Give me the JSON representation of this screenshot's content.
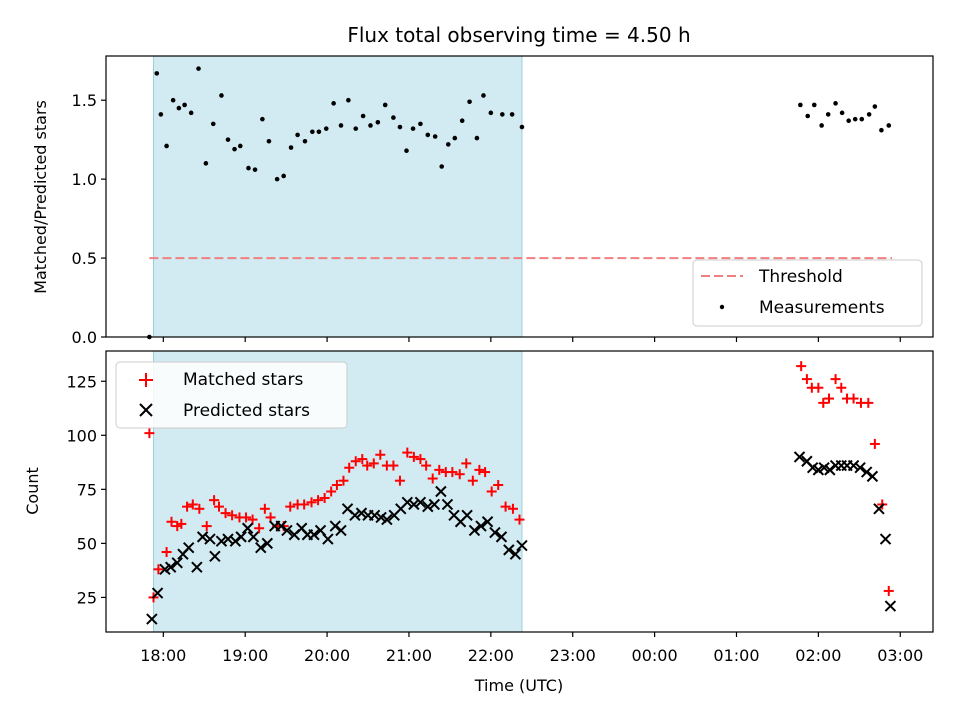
{
  "chart_data": [
    {
      "type": "scatter",
      "title": "Flux total observing time = 4.50 h",
      "ylabel": "Matched/Predicted stars",
      "xlabel": "",
      "ylim": [
        0,
        1.78
      ],
      "yticks": [
        0.0,
        0.5,
        1.0,
        1.5
      ],
      "ytick_labels": [
        "0.0",
        "0.5",
        "1.0",
        "1.5"
      ],
      "shaded_interval": {
        "x_start": 17.88,
        "x_end": 22.38,
        "color": "#add8e6"
      },
      "threshold": {
        "name": "Threshold",
        "value": 0.5,
        "x_start": 17.83,
        "x_end": 26.9,
        "color": "#f08080"
      },
      "legend": {
        "position": "lower-right",
        "entries": [
          "Threshold",
          "Measurements"
        ]
      },
      "series": [
        {
          "name": "Measurements",
          "color": "#000000",
          "x": [
            17.83,
            17.92,
            17.97,
            18.04,
            18.12,
            18.19,
            18.26,
            18.34,
            18.43,
            18.52,
            18.61,
            18.71,
            18.79,
            18.87,
            18.94,
            19.04,
            19.12,
            19.21,
            19.29,
            19.39,
            19.47,
            19.56,
            19.64,
            19.73,
            19.82,
            19.9,
            19.99,
            20.08,
            20.17,
            20.26,
            20.35,
            20.44,
            20.53,
            20.62,
            20.71,
            20.81,
            20.89,
            20.97,
            21.05,
            21.14,
            21.23,
            21.32,
            21.4,
            21.48,
            21.56,
            21.65,
            21.74,
            21.83,
            21.91,
            22.0,
            22.14,
            22.26,
            22.38,
            25.78,
            25.87,
            25.95,
            26.04,
            26.12,
            26.21,
            26.29,
            26.37,
            26.45,
            26.53,
            26.62,
            26.69,
            26.77,
            26.86
          ],
          "y": [
            0.0,
            1.67,
            1.41,
            1.21,
            1.5,
            1.45,
            1.47,
            1.42,
            1.7,
            1.1,
            1.35,
            1.53,
            1.25,
            1.19,
            1.21,
            1.07,
            1.06,
            1.38,
            1.24,
            1.0,
            1.02,
            1.2,
            1.28,
            1.24,
            1.3,
            1.3,
            1.32,
            1.48,
            1.34,
            1.5,
            1.32,
            1.4,
            1.34,
            1.36,
            1.47,
            1.39,
            1.33,
            1.18,
            1.32,
            1.35,
            1.28,
            1.27,
            1.08,
            1.22,
            1.26,
            1.37,
            1.49,
            1.26,
            1.53,
            1.42,
            1.41,
            1.41,
            1.33,
            1.47,
            1.4,
            1.47,
            1.34,
            1.41,
            1.48,
            1.42,
            1.37,
            1.38,
            1.38,
            1.41,
            1.46,
            1.31,
            1.34
          ]
        }
      ]
    },
    {
      "type": "scatter",
      "title": "",
      "ylabel": "Count",
      "xlabel": "Time (UTC)",
      "ylim": [
        9,
        139
      ],
      "yticks": [
        25,
        50,
        75,
        100,
        125
      ],
      "ytick_labels": [
        "25",
        "50",
        "75",
        "100",
        "125"
      ],
      "xlim": [
        17.3,
        27.4
      ],
      "xticks": [
        18,
        19,
        20,
        21,
        22,
        23,
        24,
        25,
        26,
        27
      ],
      "xtick_labels": [
        "18:00",
        "19:00",
        "20:00",
        "21:00",
        "22:00",
        "23:00",
        "00:00",
        "01:00",
        "02:00",
        "03:00"
      ],
      "shaded_interval": {
        "x_start": 17.88,
        "x_end": 22.38,
        "color": "#add8e6"
      },
      "legend": {
        "position": "upper-left",
        "entries": [
          "Matched stars",
          "Predicted stars"
        ]
      },
      "series": [
        {
          "name": "Matched stars",
          "color": "#ff0000",
          "marker": "plus",
          "x": [
            17.83,
            17.88,
            17.94,
            18.04,
            18.1,
            18.17,
            18.22,
            18.29,
            18.36,
            18.44,
            18.53,
            18.62,
            18.68,
            18.76,
            18.84,
            18.93,
            19.01,
            19.09,
            19.17,
            19.24,
            19.31,
            19.39,
            19.47,
            19.55,
            19.64,
            19.72,
            19.81,
            19.89,
            19.97,
            20.05,
            20.12,
            20.2,
            20.27,
            20.35,
            20.43,
            20.49,
            20.57,
            20.65,
            20.73,
            20.81,
            20.89,
            20.98,
            21.06,
            21.14,
            21.21,
            21.29,
            21.37,
            21.45,
            21.53,
            21.62,
            21.7,
            21.78,
            21.86,
            21.93,
            22.01,
            22.09,
            22.18,
            22.27,
            22.35,
            25.79,
            25.86,
            25.92,
            26.0,
            26.06,
            26.13,
            26.21,
            26.28,
            26.35,
            26.43,
            26.52,
            26.61,
            26.69,
            26.78,
            26.86
          ],
          "y": [
            101,
            25,
            38,
            46,
            60,
            58,
            59,
            67,
            68,
            66,
            58,
            70,
            67,
            64,
            63,
            62,
            62,
            61,
            57,
            66,
            62,
            58,
            58,
            67,
            68,
            68,
            69,
            70,
            71,
            74,
            77,
            79,
            85,
            88,
            89,
            86,
            87,
            91,
            86,
            86,
            79,
            92,
            90,
            89,
            86,
            80,
            84,
            83,
            83,
            82,
            87,
            79,
            84,
            83,
            74,
            77,
            67,
            66,
            61,
            132,
            126,
            122,
            122,
            115,
            117,
            126,
            122,
            117,
            117,
            115,
            115,
            96,
            68,
            28
          ]
        },
        {
          "name": "Predicted stars",
          "color": "#000000",
          "marker": "x",
          "x": [
            17.86,
            17.93,
            18.02,
            18.09,
            18.17,
            18.24,
            18.31,
            18.41,
            18.48,
            18.57,
            18.63,
            18.71,
            18.79,
            18.88,
            18.95,
            19.03,
            19.1,
            19.19,
            19.27,
            19.36,
            19.44,
            19.51,
            19.6,
            19.69,
            19.76,
            19.84,
            19.92,
            20.01,
            20.1,
            20.17,
            20.25,
            20.34,
            20.42,
            20.5,
            20.58,
            20.66,
            20.73,
            20.82,
            20.9,
            20.98,
            21.06,
            21.14,
            21.23,
            21.31,
            21.39,
            21.47,
            21.55,
            21.63,
            21.71,
            21.8,
            21.88,
            21.96,
            22.05,
            22.13,
            22.22,
            22.3,
            22.38,
            25.77,
            25.86,
            25.93,
            26.0,
            26.07,
            26.14,
            26.21,
            26.28,
            26.35,
            26.43,
            26.51,
            26.59,
            26.66,
            26.74,
            26.82,
            26.88
          ],
          "y": [
            15,
            27,
            38,
            39,
            41,
            45,
            48,
            39,
            53,
            52,
            44,
            51,
            52,
            51,
            53,
            57,
            53,
            48,
            50,
            58,
            58,
            56,
            54,
            57,
            54,
            54,
            56,
            52,
            58,
            56,
            66,
            63,
            64,
            63,
            63,
            62,
            61,
            63,
            66,
            69,
            68,
            69,
            67,
            68,
            74,
            68,
            63,
            60,
            63,
            56,
            58,
            60,
            55,
            53,
            47,
            45,
            49,
            90,
            88,
            85,
            84,
            85,
            84,
            86,
            86,
            86,
            86,
            85,
            83,
            81,
            66,
            52,
            21
          ]
        }
      ]
    }
  ]
}
